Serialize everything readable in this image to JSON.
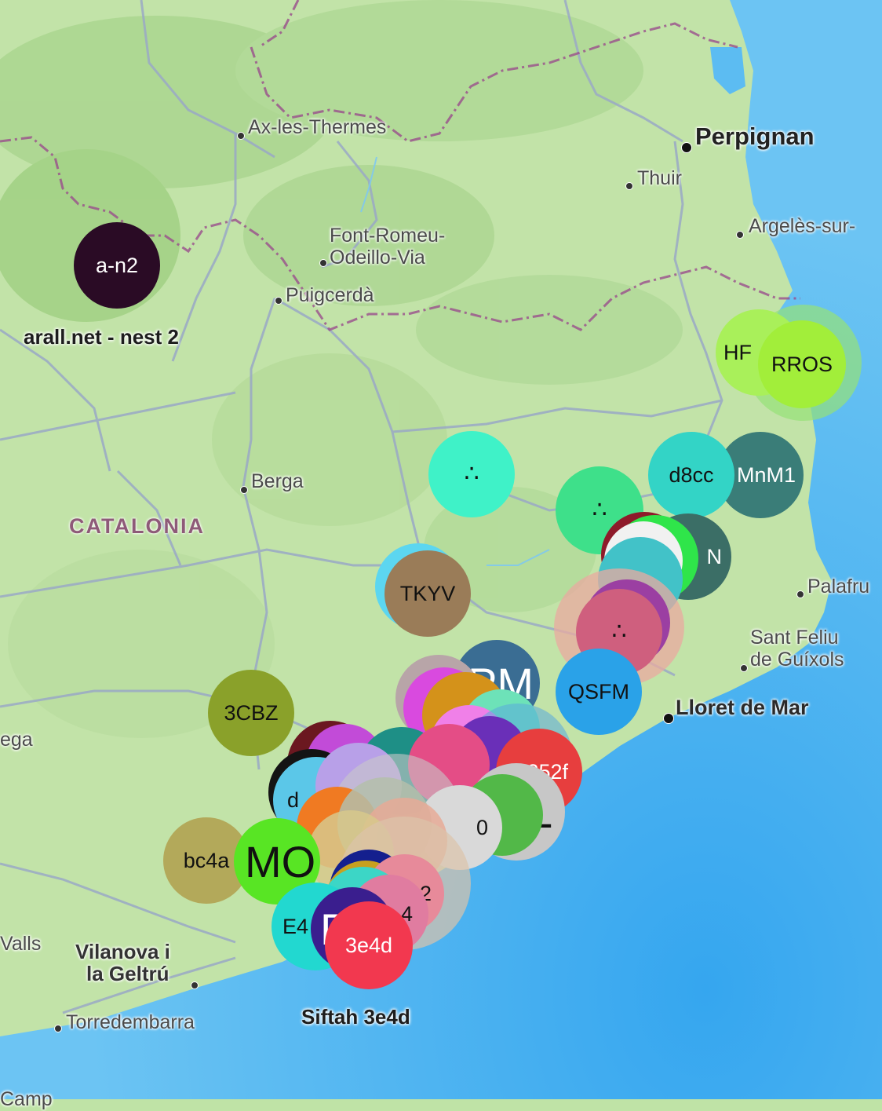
{
  "region_label": "CATALONIA",
  "towns": {
    "ax": "Ax-les-Thermes",
    "perpignan": "Perpignan",
    "thuir": "Thuir",
    "argeles": "Argelès-sur-",
    "font_romeu_1": "Font-Romeu-",
    "font_romeu_2": "Odeillo-Via",
    "puigcerda": "Puigcerdà",
    "berga": "Berga",
    "palafru": "Palafru",
    "sant_feliu_1": "Sant Feliu",
    "sant_feliu_2": "de Guíxols",
    "lloret": "Lloret de Mar",
    "ega": "ega",
    "valls": "Valls",
    "vilanova_1": "Vilanova i",
    "vilanova_2": "la Geltrú",
    "torredembarra": "Torredembarra",
    "camp": "Camp"
  },
  "markers": {
    "a_n2": {
      "label": "a-n2",
      "caption": "arall.net - nest 2",
      "color": "#2a0b25"
    },
    "hf": {
      "label": "HF",
      "color": "#a9f05a"
    },
    "rros": {
      "label": "RROS",
      "color": "#a2ee3a"
    },
    "dots_teal": {
      "label": "∴",
      "color": "#3ff2c8"
    },
    "d8cc": {
      "label": "d8cc",
      "color": "#33d4c6"
    },
    "mnm1": {
      "label": "MnM1",
      "color": "#3a7d78"
    },
    "dots_green": {
      "label": "∴",
      "color": "#3ee08a"
    },
    "n": {
      "label": "N",
      "color": "#3b6e66"
    },
    "dots_pink": {
      "label": "∴",
      "color": "#cf5f7e"
    },
    "tkyv": {
      "label": "TKYV",
      "color": "#9a7c58"
    },
    "qsfm": {
      "label": "QSFM",
      "color": "#2aa2e8"
    },
    "pm": {
      "label": "PM",
      "color": "#3a6d93"
    },
    "c252f": {
      "label": "252f",
      "color": "#e73e3e"
    },
    "cbz": {
      "label": "3CBZ",
      "color": "#8aa12a"
    },
    "el": {
      "label": "EL",
      "color": "#c7c7c7"
    },
    "d": {
      "label": "d",
      "color": "#5bc7e8"
    },
    "zero": {
      "label": "0",
      "color": "#d9d9d9"
    },
    "bc4a": {
      "label": "bc4a",
      "color": "#b3a95a"
    },
    "mo": {
      "label": "MO",
      "color": "#58e524"
    },
    "two": {
      "label": "2",
      "color": "#e78a9a"
    },
    "four": {
      "label": "4",
      "color": "#e07ca0"
    },
    "e4": {
      "label": "E4",
      "color": "#22d8d0"
    },
    "p": {
      "label": "P",
      "color": "#3a1e8e"
    },
    "b3e4d": {
      "label": "3e4d",
      "caption": "Siftah 3e4d",
      "color": "#f2384f"
    }
  }
}
